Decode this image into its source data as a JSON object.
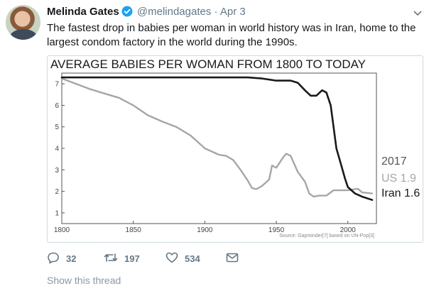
{
  "tweet": {
    "author_name": "Melinda Gates",
    "handle": "@melindagates",
    "separator": "·",
    "date": "Apr 3",
    "text": "The fastest drop in babies per woman in world history was in Iran, home to the largest condom factory in the world during the 1990s.",
    "reply_count": "32",
    "retweet_count": "197",
    "like_count": "534",
    "show_thread": "Show this thread"
  },
  "colors": {
    "verified": "#1da1f2",
    "action_icon": "#657786",
    "iran_line": "#1a1a1a",
    "us_line": "#a6a6a6"
  },
  "chart_data": {
    "type": "line",
    "title": "AVERAGE BABIES PER WOMAN FROM 1800 TO TODAY",
    "source": "Source: Gapminder[7] based on UN-Pop[3]",
    "xlim": [
      1800,
      2020
    ],
    "ylim": [
      0.5,
      7.5
    ],
    "xticks": [
      1800,
      1850,
      1900,
      1950,
      2000
    ],
    "yticks": [
      1,
      2,
      3,
      4,
      5,
      6,
      7
    ],
    "grid": false,
    "annotations": {
      "year": "2017",
      "us": "US 1.9",
      "iran": "Iran 1.6"
    },
    "series": [
      {
        "name": "Iran",
        "color": "#1a1a1a",
        "x": [
          1800,
          1850,
          1900,
          1930,
          1940,
          1950,
          1960,
          1965,
          1970,
          1974,
          1978,
          1982,
          1985,
          1988,
          1990,
          1992,
          1995,
          1998,
          2000,
          2005,
          2010,
          2017
        ],
        "y": [
          7.3,
          7.3,
          7.3,
          7.3,
          7.25,
          7.15,
          7.15,
          7.05,
          6.7,
          6.45,
          6.45,
          6.7,
          6.6,
          6.0,
          5.0,
          4.0,
          3.3,
          2.6,
          2.2,
          1.9,
          1.75,
          1.6
        ]
      },
      {
        "name": "US",
        "color": "#a6a6a6",
        "x": [
          1800,
          1810,
          1820,
          1830,
          1840,
          1850,
          1860,
          1870,
          1880,
          1890,
          1900,
          1910,
          1915,
          1920,
          1925,
          1930,
          1933,
          1936,
          1940,
          1945,
          1947,
          1950,
          1955,
          1957,
          1960,
          1965,
          1970,
          1973,
          1976,
          1980,
          1985,
          1990,
          1995,
          2000,
          2007,
          2010,
          2017
        ],
        "y": [
          7.25,
          7.0,
          6.75,
          6.55,
          6.35,
          6.0,
          5.55,
          5.25,
          5.0,
          4.6,
          4.0,
          3.7,
          3.65,
          3.45,
          3.0,
          2.5,
          2.15,
          2.1,
          2.25,
          2.55,
          3.2,
          3.1,
          3.6,
          3.75,
          3.65,
          2.9,
          2.45,
          1.9,
          1.75,
          1.8,
          1.8,
          2.05,
          2.05,
          2.05,
          2.12,
          1.95,
          1.9
        ]
      }
    ]
  }
}
